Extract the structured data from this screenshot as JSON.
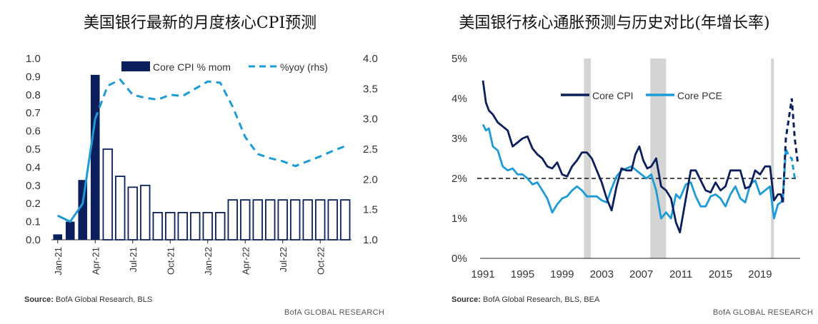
{
  "titles": {
    "left": "美国银行最新的月度核心CPI预测",
    "right": "美国银行核心通胀预测与历史对比(年增长率)"
  },
  "sources": {
    "left_label": "Source:",
    "left_text": "BofA Global Research, BLS",
    "right_label": "Source:",
    "right_text": "BofA Global Research, BLS, BEA"
  },
  "brand": "BofA GLOBAL RESEARCH",
  "colors": {
    "navy": "#0b1f5c",
    "blue": "#1d9bd7",
    "grey": "#d4d4d4"
  },
  "chart_data": [
    {
      "type": "bar",
      "title": "美国银行最新的月度核心CPI预测",
      "categories": [
        "Jan-21",
        "Feb-21",
        "Mar-21",
        "Apr-21",
        "May-21",
        "Jun-21",
        "Jul-21",
        "Aug-21",
        "Sep-21",
        "Oct-21",
        "Nov-21",
        "Dec-21",
        "Jan-22",
        "Feb-22",
        "Mar-22",
        "Apr-22",
        "May-22",
        "Jun-22",
        "Jul-22",
        "Aug-22",
        "Sep-22",
        "Oct-22",
        "Nov-22",
        "Dec-22"
      ],
      "x_tick_labels": [
        "Jan-21",
        "Apr-21",
        "Jul-21",
        "Oct-21",
        "Jan-22",
        "Apr-22",
        "Jul-22",
        "Oct-22"
      ],
      "series": [
        {
          "name": "Core CPI % mom",
          "axis": "left",
          "kind": "bar",
          "values": [
            0.03,
            0.1,
            0.33,
            0.91,
            0.5,
            0.35,
            0.29,
            0.3,
            0.15,
            0.15,
            0.15,
            0.15,
            0.15,
            0.15,
            0.22,
            0.22,
            0.22,
            0.22,
            0.22,
            0.22,
            0.22,
            0.22,
            0.22,
            0.22
          ],
          "actual_count": 4
        },
        {
          "name": "%yoy (rhs)",
          "axis": "right",
          "kind": "line",
          "values": [
            1.4,
            1.3,
            1.6,
            3.0,
            3.55,
            3.65,
            3.4,
            3.35,
            3.32,
            3.4,
            3.38,
            3.5,
            3.62,
            3.6,
            3.2,
            2.7,
            2.42,
            2.35,
            2.3,
            2.22,
            2.3,
            2.38,
            2.47,
            2.55
          ],
          "actual_count": 4
        }
      ],
      "left_axis": {
        "ylim": [
          0,
          1.0
        ],
        "ticks": [
          "1.0",
          "0.9",
          "0.8",
          "0.7",
          "0.6",
          "0.5",
          "0.4",
          "0.3",
          "0.2",
          "0.1",
          "0.0"
        ]
      },
      "right_axis": {
        "ylim": [
          1.0,
          4.0
        ],
        "ticks": [
          "4.0",
          "3.5",
          "3.0",
          "2.5",
          "2.0",
          "1.5",
          "1.0"
        ]
      },
      "legend_position": "top",
      "grid": false
    },
    {
      "type": "line",
      "title": "美国银行核心通胀预测与历史对比(年增长率)",
      "x_tick_labels": [
        "1991",
        "1995",
        "1999",
        "2003",
        "2007",
        "2011",
        "2015",
        "2019"
      ],
      "xlim": [
        1991,
        2022.9
      ],
      "ylim": [
        0,
        5
      ],
      "y_tick_labels": [
        "5%",
        "4%",
        "3%",
        "2%",
        "1%",
        "0%"
      ],
      "reference_line": {
        "y": 2.0,
        "style": "dashed"
      },
      "recessions": [
        [
          2001.2,
          2001.9
        ],
        [
          2007.9,
          2009.5
        ],
        [
          2020.1,
          2020.4
        ]
      ],
      "series": [
        {
          "name": "Core CPI",
          "x": [
            1991.0,
            1991.3,
            1991.6,
            1992.0,
            1992.5,
            1993.0,
            1993.5,
            1994.0,
            1994.5,
            1995.0,
            1995.5,
            1996.0,
            1996.5,
            1997.0,
            1997.5,
            1998.0,
            1998.5,
            1999.0,
            1999.5,
            2000.0,
            2000.5,
            2001.0,
            2001.5,
            2002.0,
            2002.5,
            2003.0,
            2003.5,
            2004.0,
            2004.5,
            2005.0,
            2005.5,
            2006.0,
            2006.4,
            2006.8,
            2007.2,
            2007.6,
            2008.0,
            2008.5,
            2009.0,
            2009.5,
            2010.0,
            2010.5,
            2010.9,
            2011.5,
            2012.0,
            2012.5,
            2013.0,
            2013.5,
            2014.0,
            2014.5,
            2015.0,
            2015.5,
            2016.0,
            2016.5,
            2017.0,
            2017.5,
            2018.0,
            2018.5,
            2019.0,
            2019.5,
            2020.0,
            2020.4,
            2020.8,
            2021.1,
            2021.3
          ],
          "y": [
            4.45,
            3.9,
            3.7,
            3.6,
            3.4,
            3.3,
            3.2,
            2.8,
            2.9,
            3.0,
            3.05,
            2.75,
            2.6,
            2.5,
            2.3,
            2.25,
            2.4,
            2.1,
            2.05,
            2.3,
            2.45,
            2.65,
            2.65,
            2.5,
            2.2,
            1.9,
            1.5,
            1.2,
            1.8,
            2.25,
            2.2,
            2.2,
            2.6,
            2.8,
            2.45,
            2.25,
            2.3,
            2.5,
            1.8,
            1.7,
            1.5,
            0.9,
            0.65,
            1.5,
            2.2,
            2.2,
            1.95,
            1.7,
            1.65,
            1.9,
            1.7,
            1.8,
            2.2,
            2.2,
            2.2,
            1.75,
            1.8,
            2.2,
            2.1,
            2.3,
            2.3,
            1.45,
            1.6,
            1.6,
            1.4
          ],
          "forecast_x": [
            2021.3,
            2021.6,
            2021.9,
            2022.2,
            2022.5,
            2022.8
          ],
          "forecast_y": [
            1.4,
            3.0,
            3.5,
            4.0,
            3.0,
            2.4
          ]
        },
        {
          "name": "Core PCE",
          "x": [
            1991.0,
            1991.3,
            1991.6,
            1992.0,
            1992.5,
            1993.0,
            1993.5,
            1994.0,
            1994.5,
            1995.0,
            1995.5,
            1996.0,
            1996.5,
            1997.0,
            1997.5,
            1998.0,
            1998.5,
            1999.0,
            1999.5,
            2000.0,
            2000.5,
            2001.0,
            2001.5,
            2002.0,
            2002.5,
            2003.0,
            2003.5,
            2004.0,
            2004.5,
            2005.0,
            2005.5,
            2006.0,
            2006.5,
            2007.0,
            2007.5,
            2008.0,
            2008.5,
            2009.0,
            2009.5,
            2010.0,
            2010.5,
            2010.9,
            2011.5,
            2012.0,
            2012.5,
            2013.0,
            2013.5,
            2014.0,
            2014.5,
            2015.0,
            2015.5,
            2016.0,
            2016.5,
            2017.0,
            2017.5,
            2018.0,
            2018.5,
            2019.0,
            2019.5,
            2020.0,
            2020.4,
            2020.8,
            2021.1,
            2021.3
          ],
          "y": [
            3.35,
            3.2,
            3.25,
            2.8,
            2.7,
            2.3,
            2.2,
            2.25,
            2.1,
            2.1,
            2.0,
            1.85,
            1.9,
            1.7,
            1.5,
            1.15,
            1.35,
            1.5,
            1.55,
            1.7,
            1.8,
            1.7,
            1.55,
            1.55,
            1.55,
            1.45,
            1.4,
            1.75,
            2.05,
            2.2,
            2.25,
            2.3,
            2.2,
            2.1,
            2.0,
            2.1,
            1.7,
            1.0,
            1.15,
            1.0,
            1.6,
            1.5,
            1.85,
            1.9,
            1.55,
            1.3,
            1.3,
            1.55,
            1.6,
            1.5,
            1.3,
            1.6,
            1.8,
            1.5,
            1.4,
            1.85,
            1.95,
            1.6,
            1.7,
            1.8,
            1.0,
            1.35,
            1.4,
            1.5
          ],
          "forecast_x": [
            2021.3,
            2021.6,
            2021.9,
            2022.2,
            2022.5,
            2022.8
          ],
          "forecast_y": [
            1.5,
            2.75,
            2.55,
            2.5,
            2.0,
            2.05
          ]
        }
      ],
      "legend_position": "top-center",
      "grid": false
    }
  ]
}
